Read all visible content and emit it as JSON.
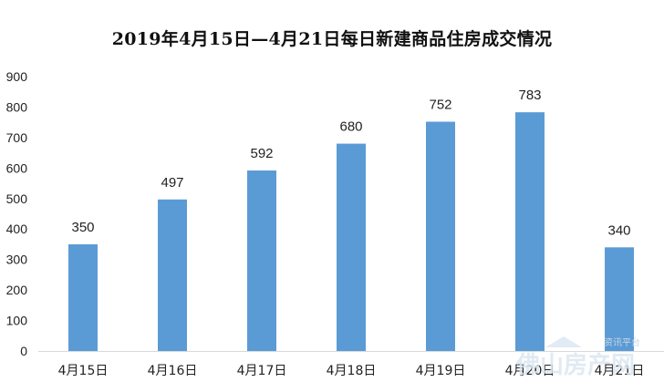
{
  "chart_data": {
    "type": "bar",
    "title": "2019年4月15日—4月21日每日新建商品住房成交情况",
    "categories": [
      "4月15日",
      "4月16日",
      "4月17日",
      "4月18日",
      "4月19日",
      "4月20日",
      "4月21日"
    ],
    "values": [
      350,
      497,
      592,
      680,
      752,
      783,
      340
    ],
    "ylim": [
      0,
      900
    ],
    "yticks": [
      0,
      100,
      200,
      300,
      400,
      500,
      600,
      700,
      800,
      900
    ],
    "grid": false,
    "legend": "none",
    "bar_color": "#5B9BD5"
  },
  "watermark": {
    "small_text": "资讯平台",
    "large_text": "佛山房产网"
  }
}
